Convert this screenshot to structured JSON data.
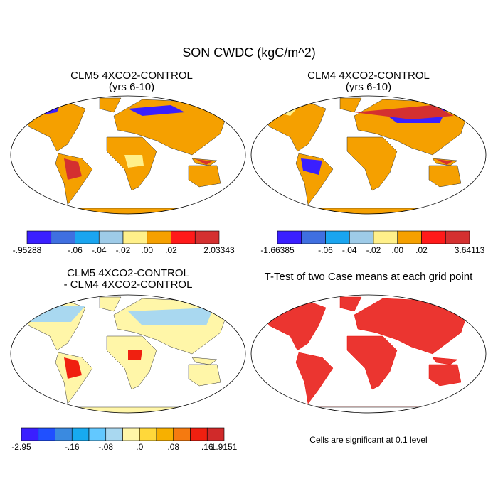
{
  "title": "SON CWDC (kgC/m^2)",
  "panels": [
    {
      "title": [
        "CLM5 4XCO2-CONTROL",
        "(yrs 6-10)"
      ],
      "colorbar": {
        "colors": [
          "#3a1fff",
          "#3f6fe0",
          "#1aa5f0",
          "#9ecbe8",
          "#fff08a",
          "#f5a000",
          "#ff1a1a",
          "#d43030"
        ],
        "labels": [
          "-.95288",
          null,
          "-.06",
          "-.04",
          "-.02",
          ".00",
          ".02",
          null,
          "2.03343"
        ]
      }
    },
    {
      "title": [
        "CLM4 4XCO2-CONTROL",
        "(yrs 6-10)"
      ],
      "colorbar": {
        "colors": [
          "#3a1fff",
          "#3f6fe0",
          "#1aa5f0",
          "#9ecbe8",
          "#fff08a",
          "#f5a000",
          "#ff1a1a",
          "#d43030"
        ],
        "labels": [
          "-1.66385",
          null,
          "-.06",
          "-.04",
          "-.02",
          ".00",
          ".02",
          null,
          "3.64113"
        ]
      }
    },
    {
      "title": [
        "CLM5 4XCO2-CONTROL",
        "- CLM4 4XCO2-CONTROL"
      ],
      "colorbar": {
        "colors": [
          "#3a1fff",
          "#2050ff",
          "#3a8ae0",
          "#17aaf0",
          "#62c8ff",
          "#a9d8f0",
          "#fff6a8",
          "#ffd83a",
          "#f7b000",
          "#f57a10",
          "#f02010",
          "#d02a2a"
        ],
        "labels": [
          "-2.95",
          null,
          null,
          "-.16",
          null,
          "-.08",
          null,
          ".0",
          null,
          ".08",
          null,
          ".16",
          "1.9151"
        ]
      }
    },
    {
      "title": [
        "T-Test of two Case means at each grid point"
      ],
      "note": "Cells are significant at 0.1 level"
    }
  ]
}
